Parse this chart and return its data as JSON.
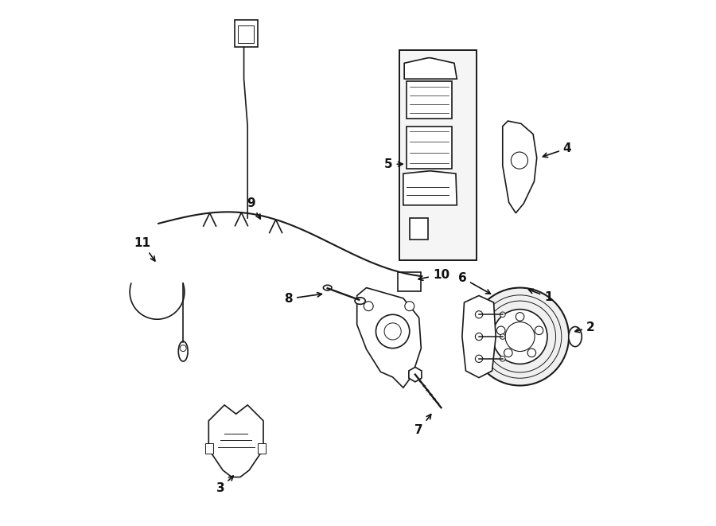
{
  "bg_color": "#ffffff",
  "fig_width": 9.0,
  "fig_height": 6.61,
  "dpi": 100,
  "line_color": "#1a1a1a",
  "lw": 1.2,
  "label_positions": {
    "1": [
      0.862,
      0.435,
      0.818,
      0.452
    ],
    "2": [
      0.942,
      0.378,
      0.906,
      0.368
    ],
    "3": [
      0.238,
      0.072,
      0.268,
      0.1
    ],
    "4": [
      0.898,
      0.718,
      0.845,
      0.7
    ],
    "5": [
      0.558,
      0.688,
      0.592,
      0.688
    ],
    "6": [
      0.698,
      0.472,
      0.758,
      0.438
    ],
    "7": [
      0.616,
      0.182,
      0.643,
      0.218
    ],
    "8": [
      0.368,
      0.432,
      0.438,
      0.442
    ],
    "9": [
      0.296,
      0.614,
      0.318,
      0.578
    ],
    "10": [
      0.658,
      0.478,
      0.608,
      0.468
    ],
    "11": [
      0.09,
      0.538,
      0.118,
      0.498
    ]
  }
}
